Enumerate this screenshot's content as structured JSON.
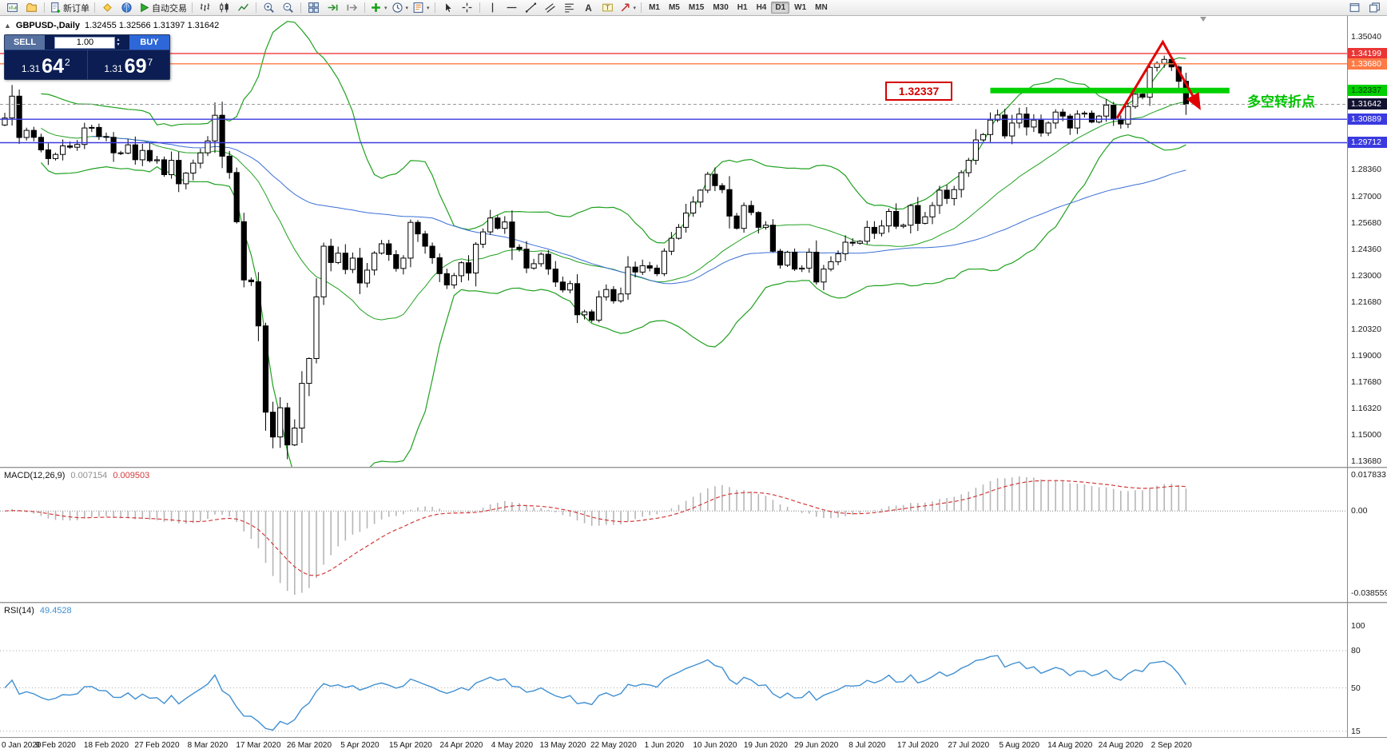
{
  "toolbar": {
    "groups": [
      {
        "items": [
          {
            "name": "new-chart-button",
            "icon": "chart-new"
          },
          {
            "name": "profiles-button",
            "icon": "profiles"
          }
        ]
      },
      {
        "items": [
          {
            "name": "new-order-button",
            "icon": "new-order",
            "label": "新订单"
          }
        ]
      },
      {
        "items": [
          {
            "name": "metaeditor-button",
            "icon": "metaeditor"
          },
          {
            "name": "market-button",
            "icon": "market"
          },
          {
            "name": "autotrading-button",
            "icon": "autotrade",
            "label": "自动交易"
          }
        ]
      },
      {
        "items": [
          {
            "name": "bar-chart-button",
            "icon": "bars"
          },
          {
            "name": "candlestick-chart-button",
            "icon": "candles"
          },
          {
            "name": "line-chart-button",
            "icon": "linechart"
          }
        ]
      },
      {
        "items": [
          {
            "name": "zoom-in-button",
            "icon": "zoom-in"
          },
          {
            "name": "zoom-out-button",
            "icon": "zoom-out"
          }
        ]
      },
      {
        "items": [
          {
            "name": "tile-windows-button",
            "icon": "tile"
          },
          {
            "name": "auto-scroll-button",
            "icon": "autoscroll"
          },
          {
            "name": "chart-shift-button",
            "icon": "shift"
          }
        ]
      },
      {
        "items": [
          {
            "name": "indicators-button",
            "icon": "indicators",
            "caret": true
          },
          {
            "name": "periods-button",
            "icon": "clock",
            "caret": true
          },
          {
            "name": "templates-button",
            "icon": "template",
            "caret": true
          }
        ]
      },
      {
        "items": [
          {
            "name": "cursor-button",
            "icon": "cursor"
          },
          {
            "name": "crosshair-button",
            "icon": "crosshair"
          }
        ]
      },
      {
        "items": [
          {
            "name": "vertical-line-button",
            "icon": "vline"
          },
          {
            "name": "horizontal-line-button",
            "icon": "hline"
          },
          {
            "name": "trendline-button",
            "icon": "trendline"
          },
          {
            "name": "channel-button",
            "icon": "channel"
          },
          {
            "name": "fibonacci-button",
            "icon": "fibo"
          },
          {
            "name": "text-button",
            "icon": "text-a"
          },
          {
            "name": "text-label-button",
            "icon": "text-t"
          },
          {
            "name": "arrows-button",
            "icon": "arrow-tool",
            "caret": true
          }
        ]
      },
      {
        "items": [
          {
            "tf": true,
            "label": "M1"
          },
          {
            "tf": true,
            "label": "M5"
          },
          {
            "tf": true,
            "label": "M15"
          },
          {
            "tf": true,
            "label": "M30"
          },
          {
            "tf": true,
            "label": "H1"
          },
          {
            "tf": true,
            "label": "H4"
          },
          {
            "tf": true,
            "label": "D1",
            "active": true
          },
          {
            "tf": true,
            "label": "W1"
          },
          {
            "tf": true,
            "label": "MN"
          }
        ]
      }
    ],
    "right_items": [
      {
        "name": "windows-cascade-button",
        "icon": "win"
      },
      {
        "name": "windows-tile-button",
        "icon": "win2"
      }
    ]
  },
  "chart_title": {
    "symbol": "GBPUSD-,Daily",
    "ohlc": "1.32455 1.32566 1.31397 1.31642"
  },
  "one_click": {
    "sell_label": "SELL",
    "buy_label": "BUY",
    "volume": "1.00",
    "bid_prefix": "1.31",
    "bid_main": "64",
    "bid_sup": "2",
    "ask_prefix": "1.31",
    "ask_main": "69",
    "ask_sup": "7"
  },
  "annotations": {
    "level_box": "1.32337",
    "turning_point": "多空转折点"
  },
  "macd_panel": {
    "name": "MACD(12,26,9)",
    "main": "0.007154",
    "signal": "0.009503",
    "scale_top": "0.017833",
    "scale_zero": "0.00",
    "scale_bottom": "-0.038559"
  },
  "rsi_panel": {
    "name": "RSI(14)",
    "value": "49.4528"
  },
  "chart_data": {
    "type": "candlestick",
    "symbol": "GBPUSD",
    "timeframe": "Daily",
    "price": {
      "first_open": 1.306,
      "closes": [
        1.3095,
        1.3205,
        1.2997,
        1.3033,
        1.2998,
        1.2935,
        1.2891,
        1.2912,
        1.2955,
        1.2948,
        1.2962,
        1.3045,
        1.3048,
        1.3002,
        1.2998,
        1.292,
        1.2918,
        1.296,
        1.2885,
        1.2932,
        1.288,
        1.2885,
        1.281,
        1.2882,
        1.2764,
        1.2818,
        1.2868,
        1.292,
        1.298,
        1.3109,
        1.2903,
        1.2821,
        1.2573,
        1.228,
        1.2271,
        1.2049,
        1.1615,
        1.149,
        1.1637,
        1.145,
        1.1535,
        1.176,
        1.1885,
        1.2195,
        1.245,
        1.2368,
        1.2415,
        1.2333,
        1.239,
        1.2265,
        1.233,
        1.2415,
        1.2462,
        1.2408,
        1.2338,
        1.239,
        1.257,
        1.2512,
        1.245,
        1.2392,
        1.2312,
        1.2255,
        1.2302,
        1.2367,
        1.2315,
        1.246,
        1.2522,
        1.2592,
        1.254,
        1.2572,
        1.2445,
        1.2435,
        1.234,
        1.2362,
        1.241,
        1.2335,
        1.227,
        1.223,
        1.2262,
        1.2105,
        1.212,
        1.2078,
        1.2195,
        1.2232,
        1.2175,
        1.221,
        1.2345,
        1.232,
        1.2352,
        1.234,
        1.2312,
        1.2425,
        1.249,
        1.2545,
        1.2617,
        1.2672,
        1.2732,
        1.2812,
        1.2755,
        1.2735,
        1.2602,
        1.254,
        1.2655,
        1.262,
        1.2545,
        1.2556,
        1.2425,
        1.2355,
        1.242,
        1.2335,
        1.234,
        1.242,
        1.227,
        1.2335,
        1.2372,
        1.2412,
        1.247,
        1.2465,
        1.2475,
        1.2545,
        1.2515,
        1.2552,
        1.2625,
        1.255,
        1.2556,
        1.2655,
        1.2565,
        1.2598,
        1.2655,
        1.2732,
        1.269,
        1.2735,
        1.282,
        1.2882,
        1.2985,
        1.3012,
        1.3085,
        1.311,
        1.3005,
        1.307,
        1.3115,
        1.305,
        1.3085,
        1.302,
        1.307,
        1.3125,
        1.3105,
        1.3045,
        1.3115,
        1.312,
        1.3075,
        1.3105,
        1.316,
        1.309,
        1.3065,
        1.3153,
        1.3215,
        1.32,
        1.335,
        1.337,
        1.339,
        1.3352,
        1.328,
        1.3164
      ]
    },
    "indicators": {
      "bollinger_period": 20,
      "bollinger_deviation": 2,
      "ma_period": 60,
      "macd": [
        12,
        26,
        9
      ],
      "rsi_period": 14
    },
    "price_range": {
      "top": 1.3504,
      "bottom": 1.1368
    },
    "price_axis_labels": [
      {
        "text": "1.35040",
        "price": 1.3504
      },
      {
        "text": "1.28360",
        "price": 1.2836
      },
      {
        "text": "1.27000",
        "price": 1.27
      },
      {
        "text": "1.25680",
        "price": 1.2568
      },
      {
        "text": "1.24360",
        "price": 1.2436
      },
      {
        "text": "1.23000",
        "price": 1.23
      },
      {
        "text": "1.21680",
        "price": 1.2168
      },
      {
        "text": "1.20320",
        "price": 1.2032
      },
      {
        "text": "1.19000",
        "price": 1.19
      },
      {
        "text": "1.17680",
        "price": 1.1768
      },
      {
        "text": "1.16320",
        "price": 1.1632
      },
      {
        "text": "1.15000",
        "price": 1.15
      },
      {
        "text": "1.13680",
        "price": 1.1368
      }
    ],
    "badges": [
      {
        "text": "1.34199",
        "price": 1.34199,
        "bg": "#e93535",
        "fg": "#ffffff"
      },
      {
        "text": "1.33680",
        "price": 1.3368,
        "bg": "#ff7a45",
        "fg": "#ffffff"
      },
      {
        "text": "1.32337",
        "price": 1.32337,
        "bg": "#00d000",
        "fg": "#063306"
      },
      {
        "text": "1.31642",
        "price": 1.31642,
        "bg": "#121230",
        "fg": "#ffffff"
      },
      {
        "text": "1.30889",
        "price": 1.30889,
        "bg": "#3a3ae0",
        "fg": "#ffffff"
      },
      {
        "text": "1.29712",
        "price": 1.29712,
        "bg": "#3a3ae0",
        "fg": "#ffffff"
      }
    ],
    "levels": [
      {
        "price": 1.34199,
        "color": "#ef3b3b",
        "width": 1.4
      },
      {
        "price": 1.3368,
        "color": "#ff7a45",
        "width": 1.4
      },
      {
        "price": 1.31642,
        "color": "#9a9a9a",
        "width": 1,
        "dash": "4 3"
      },
      {
        "price": 1.30889,
        "color": "#3a3ae0",
        "width": 1.4
      },
      {
        "price": 1.29712,
        "color": "#3a3ae0",
        "width": 1.4
      }
    ],
    "green_zone": {
      "price": 1.32337,
      "from_index": 136,
      "to_index": 169,
      "color": "#00d000",
      "width": 7
    },
    "trend_arrow": {
      "color": "#e00000",
      "points": [
        {
          "i": 153.5,
          "p": 1.3095
        },
        {
          "i": 159.8,
          "p": 1.3478
        },
        {
          "i": 164.8,
          "p": 1.315
        }
      ]
    },
    "dates": [
      {
        "text": "0 Jan 2020",
        "index": 0
      },
      {
        "text": "9 Feb 2020",
        "index": 7
      },
      {
        "text": "18 Feb 2020",
        "index": 14
      },
      {
        "text": "27 Feb 2020",
        "index": 21
      },
      {
        "text": "8 Mar 2020",
        "index": 28
      },
      {
        "text": "17 Mar 2020",
        "index": 35
      },
      {
        "text": "26 Mar 2020",
        "index": 42
      },
      {
        "text": "5 Apr 2020",
        "index": 49
      },
      {
        "text": "15 Apr 2020",
        "index": 56
      },
      {
        "text": "24 Apr 2020",
        "index": 63
      },
      {
        "text": "4 May 2020",
        "index": 70
      },
      {
        "text": "13 May 2020",
        "index": 77
      },
      {
        "text": "22 May 2020",
        "index": 84
      },
      {
        "text": "1 Jun 2020",
        "index": 91
      },
      {
        "text": "10 Jun 2020",
        "index": 98
      },
      {
        "text": "19 Jun 2020",
        "index": 105
      },
      {
        "text": "29 Jun 2020",
        "index": 112
      },
      {
        "text": "8 Jul 2020",
        "index": 119
      },
      {
        "text": "17 Jul 2020",
        "index": 126
      },
      {
        "text": "27 Jul 2020",
        "index": 133
      },
      {
        "text": "5 Aug 2020",
        "index": 140
      },
      {
        "text": "14 Aug 2020",
        "index": 147
      },
      {
        "text": "24 Aug 2020",
        "index": 154
      },
      {
        "text": "2 Sep 2020",
        "index": 161
      }
    ],
    "rsi_axis": [
      {
        "text": "100",
        "value": 100,
        "line": false
      },
      {
        "text": "80",
        "value": 80,
        "line": true
      },
      {
        "text": "50",
        "value": 50,
        "line": true
      },
      {
        "text": "15",
        "value": 15,
        "line": true
      }
    ]
  }
}
